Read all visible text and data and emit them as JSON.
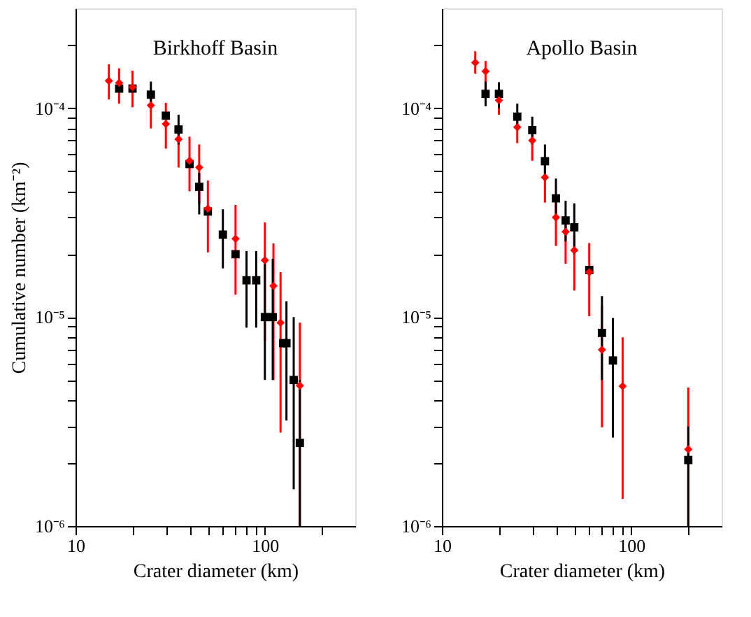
{
  "chart_data": [
    {
      "type": "scatter",
      "title": "Birkhoff Basin",
      "xlabel": "Crater diameter (km)",
      "ylabel": "Cumulative number (km⁻²)",
      "log": "xy",
      "grid": false,
      "xlim": [
        10,
        300
      ],
      "ylim": [
        1e-06,
        0.0003
      ],
      "xticks": [
        10,
        {
          "value": 20,
          "label": null
        },
        {
          "value": 30,
          "label": null
        },
        {
          "value": 40,
          "label": null
        },
        {
          "value": 50,
          "label": null
        },
        {
          "value": 60,
          "label": null
        },
        {
          "value": 70,
          "label": null
        },
        {
          "value": 80,
          "label": null
        },
        {
          "value": 90,
          "label": null
        },
        100,
        {
          "value": 200,
          "label": null
        }
      ],
      "yticks": [
        {
          "value": 1e-06,
          "label": "10⁻⁶"
        },
        {
          "value": 2e-06,
          "label": null
        },
        {
          "value": 3e-06,
          "label": null
        },
        {
          "value": 4e-06,
          "label": null
        },
        {
          "value": 5e-06,
          "label": null
        },
        {
          "value": 6e-06,
          "label": null
        },
        {
          "value": 7e-06,
          "label": null
        },
        {
          "value": 8e-06,
          "label": null
        },
        {
          "value": 9e-06,
          "label": null
        },
        {
          "value": 1e-05,
          "label": "10⁻⁵"
        },
        {
          "value": 2e-05,
          "label": null
        },
        {
          "value": 3e-05,
          "label": null
        },
        {
          "value": 4e-05,
          "label": null
        },
        {
          "value": 5e-05,
          "label": null
        },
        {
          "value": 6e-05,
          "label": null
        },
        {
          "value": 7e-05,
          "label": null
        },
        {
          "value": 8e-05,
          "label": null
        },
        {
          "value": 9e-05,
          "label": null
        },
        {
          "value": 0.0001,
          "label": "10⁻⁴"
        },
        {
          "value": 0.0002,
          "label": null
        }
      ],
      "series": [
        {
          "color": "#ff0000",
          "marker": "diamond",
          "x": [
            15,
            17,
            20,
            25,
            30,
            35,
            40,
            45,
            50,
            70,
            100,
            111,
            121,
            153
          ],
          "values": [
            0.000135,
            0.000132,
            0.000126,
            0.000103,
            8.4e-05,
            7.1e-05,
            5.6e-05,
            5.2e-05,
            3.3e-05,
            2.37e-05,
            1.87e-05,
            1.41e-05,
            9.4e-06,
            4.7e-06
          ],
          "errors": [
            [
              0.00011,
              0.000162
            ],
            [
              0.000105,
              0.000155
            ],
            [
              0.000101,
              0.000151
            ],
            [
              8e-05,
              0.000124
            ],
            [
              6.4e-05,
              0.000106
            ],
            [
              5.2e-05,
              8.2e-05
            ],
            [
              4e-05,
              7.3e-05
            ],
            [
              3.5e-05,
              6.7e-05
            ],
            [
              2.04e-05,
              4.5e-05
            ],
            [
              1.28e-05,
              3.44e-05
            ],
            [
              7.7e-06,
              2.84e-05
            ],
            [
              5e-06,
              2.25e-05
            ],
            [
              2.8e-06,
              1.64e-05
            ],
            [
              1e-06,
              9.4e-06
            ]
          ]
        },
        {
          "color": "#000000",
          "marker": "square",
          "x": [
            17,
            20,
            25,
            30,
            35,
            40,
            45,
            50,
            60,
            70,
            80,
            90,
            100,
            110,
            125,
            130,
            142,
            153
          ],
          "values": [
            0.000124,
            0.000124,
            0.000116,
            9.2e-05,
            7.9e-05,
            5.4e-05,
            4.2e-05,
            3.2e-05,
            2.48e-05,
            2e-05,
            1.5e-05,
            1.5e-05,
            1e-05,
            1e-05,
            7.5e-06,
            7.5e-06,
            5e-06,
            2.5e-06
          ],
          "errors": [
            null,
            null,
            [
              0.0001,
              0.000134
            ],
            null,
            [
              6.7e-05,
              9.3e-05
            ],
            null,
            [
              3.1e-05,
              4.9e-05
            ],
            null,
            [
              1.71e-05,
              3.28e-05
            ],
            null,
            [
              8.9e-06,
              2.07e-05
            ],
            [
              8.9e-06,
              2.07e-05
            ],
            [
              5e-06,
              1.9e-05
            ],
            [
              5e-06,
              1.9e-05
            ],
            null,
            [
              3.2e-06,
              1.19e-05
            ],
            [
              1.5e-06,
              1e-05
            ],
            [
              1e-06,
              5e-06
            ]
          ]
        }
      ]
    },
    {
      "type": "scatter",
      "title": "Apollo Basin",
      "xlabel": "Crater diameter (km)",
      "log": "xy",
      "grid": false,
      "xlim": [
        10,
        300
      ],
      "ylim": [
        1e-06,
        0.0003
      ],
      "xticks": [
        10,
        {
          "value": 20,
          "label": null
        },
        {
          "value": 30,
          "label": null
        },
        {
          "value": 40,
          "label": null
        },
        {
          "value": 50,
          "label": null
        },
        {
          "value": 60,
          "label": null
        },
        {
          "value": 70,
          "label": null
        },
        {
          "value": 80,
          "label": null
        },
        {
          "value": 90,
          "label": null
        },
        100,
        {
          "value": 200,
          "label": null
        }
      ],
      "yticks": [
        {
          "value": 1e-06,
          "label": "10⁻⁶"
        },
        {
          "value": 2e-06,
          "label": null
        },
        {
          "value": 3e-06,
          "label": null
        },
        {
          "value": 4e-06,
          "label": null
        },
        {
          "value": 5e-06,
          "label": null
        },
        {
          "value": 6e-06,
          "label": null
        },
        {
          "value": 7e-06,
          "label": null
        },
        {
          "value": 8e-06,
          "label": null
        },
        {
          "value": 9e-06,
          "label": null
        },
        {
          "value": 1e-05,
          "label": "10⁻⁵"
        },
        {
          "value": 2e-05,
          "label": null
        },
        {
          "value": 3e-05,
          "label": null
        },
        {
          "value": 4e-05,
          "label": null
        },
        {
          "value": 5e-05,
          "label": null
        },
        {
          "value": 6e-05,
          "label": null
        },
        {
          "value": 7e-05,
          "label": null
        },
        {
          "value": 8e-05,
          "label": null
        },
        {
          "value": 9e-05,
          "label": null
        },
        {
          "value": 0.0001,
          "label": "10⁻⁴"
        },
        {
          "value": 0.0002,
          "label": null
        }
      ],
      "series": [
        {
          "color": "#ff0000",
          "marker": "diamond",
          "x": [
            15,
            17,
            20,
            25,
            30,
            35,
            40,
            45,
            50,
            60,
            70,
            90,
            200
          ],
          "values": [
            0.000165,
            0.00015,
            0.000109,
            8.1e-05,
            7e-05,
            4.66e-05,
            3e-05,
            2.56e-05,
            2.09e-05,
            1.64e-05,
            6.97e-06,
            4.67e-06,
            2.33e-06
          ],
          "errors": [
            [
              0.000146,
              0.000187
            ],
            [
              0.000118,
              0.000168
            ],
            [
              9.3e-05,
              0.000124
            ],
            [
              6.8e-05,
              9.3e-05
            ],
            [
              5.6e-05,
              8.2e-05
            ],
            [
              3.53e-05,
              5.3e-05
            ],
            [
              2.19e-05,
              3.6e-05
            ],
            [
              1.8e-05,
              3e-05
            ],
            [
              1.34e-05,
              2.45e-05
            ],
            [
              1.01e-05,
              2.26e-05
            ],
            [
              2.97e-06,
              1.13e-05
            ],
            [
              1.35e-06,
              8e-06
            ],
            [
              1e-06,
              4.6e-06
            ]
          ]
        },
        {
          "color": "#000000",
          "marker": "square",
          "x": [
            17,
            20,
            25,
            30,
            35,
            40,
            45,
            50,
            60,
            70,
            80,
            200
          ],
          "values": [
            0.000117,
            0.000117,
            9.1e-05,
            7.85e-05,
            5.57e-05,
            3.7e-05,
            2.9e-05,
            2.69e-05,
            1.68e-05,
            8.4e-06,
            6.2e-06,
            2.07e-06
          ],
          "errors": [
            [
              0.000102,
              0.000134
            ],
            [
              0.0001,
              0.000133
            ],
            [
              7.9e-05,
              0.000105
            ],
            [
              6.7e-05,
              9.1e-05
            ],
            [
              4.6e-05,
              6.7e-05
            ],
            [
              2.9e-05,
              4.6e-05
            ],
            [
              2.3e-05,
              3.6e-05
            ],
            [
              2e-05,
              3.5e-05
            ],
            null,
            [
              5e-06,
              1.26e-05
            ],
            [
              2.65e-06,
              9.9e-06
            ],
            [
              1e-06,
              3e-06
            ]
          ]
        }
      ]
    }
  ]
}
